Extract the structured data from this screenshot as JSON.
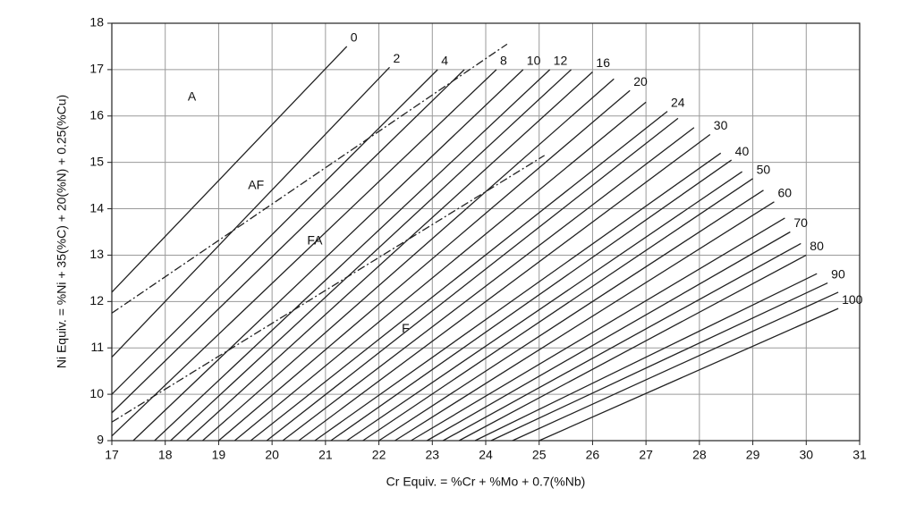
{
  "chart_data": {
    "type": "line",
    "x_label": "Cr Equiv. = %Cr + %Mo + 0.7(%Nb)",
    "y_label": "Ni Equiv. = %Ni + 35(%C) + 20(%N) + 0.25(%Cu)",
    "xlim": [
      17,
      31
    ],
    "ylim": [
      9,
      18
    ],
    "xticks": [
      17,
      18,
      19,
      20,
      21,
      22,
      23,
      24,
      25,
      26,
      27,
      28,
      29,
      30,
      31
    ],
    "yticks": [
      9,
      10,
      11,
      12,
      13,
      14,
      15,
      16,
      17,
      18
    ],
    "grid": true,
    "color": "#222222",
    "series": [
      {
        "name": "0",
        "x": [
          17,
          21.4
        ],
        "values": [
          12.2,
          17.5
        ]
      },
      {
        "name": "2",
        "x": [
          17,
          22.2
        ],
        "values": [
          10.8,
          17.05
        ]
      },
      {
        "name": "4",
        "x": [
          17,
          23.1
        ],
        "values": [
          10.0,
          17.0
        ]
      },
      {
        "name": null,
        "x": [
          17,
          23.6
        ],
        "values": [
          9.6,
          17.0
        ]
      },
      {
        "name": "8",
        "x": [
          17,
          24.2
        ],
        "values": [
          9.1,
          17.0
        ]
      },
      {
        "name": "10",
        "x": [
          17.4,
          24.7
        ],
        "values": [
          9,
          17.0
        ]
      },
      {
        "name": "12",
        "x": [
          17.8,
          25.2
        ],
        "values": [
          9,
          17.0
        ]
      },
      {
        "name": null,
        "x": [
          18.1,
          25.6
        ],
        "values": [
          9,
          17.0
        ]
      },
      {
        "name": "16",
        "x": [
          18.4,
          26.0
        ],
        "values": [
          9,
          16.95
        ]
      },
      {
        "name": null,
        "x": [
          18.7,
          26.4
        ],
        "values": [
          9,
          16.8
        ]
      },
      {
        "name": "20",
        "x": [
          19.0,
          26.7
        ],
        "values": [
          9,
          16.55
        ]
      },
      {
        "name": null,
        "x": [
          19.3,
          27.0
        ],
        "values": [
          9,
          16.3
        ]
      },
      {
        "name": "24",
        "x": [
          19.6,
          27.4
        ],
        "values": [
          9,
          16.1
        ]
      },
      {
        "name": null,
        "x": [
          19.9,
          27.6
        ],
        "values": [
          9,
          15.95
        ]
      },
      {
        "name": null,
        "x": [
          20.2,
          27.9
        ],
        "values": [
          9,
          15.75
        ]
      },
      {
        "name": "30",
        "x": [
          20.5,
          28.2
        ],
        "values": [
          9,
          15.6
        ]
      },
      {
        "name": null,
        "x": [
          20.8,
          28.4
        ],
        "values": [
          9,
          15.2
        ]
      },
      {
        "name": "40",
        "x": [
          21.1,
          28.6
        ],
        "values": [
          9,
          15.05
        ]
      },
      {
        "name": null,
        "x": [
          21.4,
          28.8
        ],
        "values": [
          9,
          14.8
        ]
      },
      {
        "name": "50",
        "x": [
          21.7,
          29.0
        ],
        "values": [
          9,
          14.65
        ]
      },
      {
        "name": null,
        "x": [
          22.0,
          29.2
        ],
        "values": [
          9,
          14.4
        ]
      },
      {
        "name": "60",
        "x": [
          22.3,
          29.4
        ],
        "values": [
          9,
          14.15
        ]
      },
      {
        "name": null,
        "x": [
          22.6,
          29.6
        ],
        "values": [
          9,
          13.8
        ]
      },
      {
        "name": "70",
        "x": [
          22.9,
          29.7
        ],
        "values": [
          9,
          13.5
        ]
      },
      {
        "name": null,
        "x": [
          23.2,
          29.9
        ],
        "values": [
          9,
          13.25
        ]
      },
      {
        "name": "80",
        "x": [
          23.5,
          30.0
        ],
        "values": [
          9,
          13.0
        ]
      },
      {
        "name": null,
        "x": [
          23.8,
          30.2
        ],
        "values": [
          9,
          12.6
        ]
      },
      {
        "name": "90",
        "x": [
          24.1,
          30.4
        ],
        "values": [
          9,
          12.4
        ]
      },
      {
        "name": null,
        "x": [
          24.5,
          30.6
        ],
        "values": [
          9,
          12.2
        ]
      },
      {
        "name": "100",
        "x": [
          25.0,
          30.6
        ],
        "values": [
          9,
          11.85
        ]
      },
      {
        "name": null,
        "style": "dashdot",
        "x": [
          17,
          24.4
        ],
        "values": [
          11.75,
          17.55
        ]
      },
      {
        "name": null,
        "style": "dashdot",
        "x": [
          17,
          25.1
        ],
        "values": [
          9.4,
          15.15
        ]
      }
    ],
    "annotations": [
      {
        "text": "A",
        "x": 18.5,
        "y": 16.4
      },
      {
        "text": "AF",
        "x": 19.7,
        "y": 14.5
      },
      {
        "text": "FA",
        "x": 20.8,
        "y": 13.3
      },
      {
        "text": "F",
        "x": 22.5,
        "y": 11.4
      }
    ]
  }
}
